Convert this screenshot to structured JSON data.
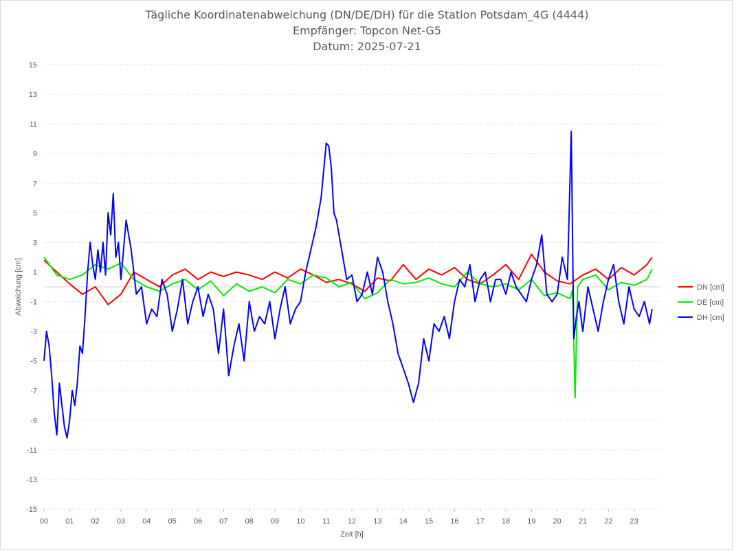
{
  "chart_data": {
    "type": "line",
    "title": [
      "Tägliche Koordinatenabweichung (DN/DE/DH) für die Station Potsdam_4G (4444)",
      "Empfänger: Topcon Net-G5",
      "Datum: 2025-07-21"
    ],
    "xlabel": "Zeit [h]",
    "ylabel": "Abweichung [cm]",
    "xlim": [
      0,
      24
    ],
    "ylim": [
      -15,
      15
    ],
    "x_ticks": [
      "00",
      "01",
      "02",
      "03",
      "04",
      "05",
      "06",
      "07",
      "08",
      "09",
      "10",
      "11",
      "12",
      "13",
      "14",
      "15",
      "16",
      "17",
      "18",
      "19",
      "20",
      "21",
      "22",
      "23"
    ],
    "y_ticks": [
      15,
      13,
      11,
      9,
      7,
      5,
      3,
      1,
      -1,
      -3,
      -5,
      -7,
      -9,
      -11,
      -13,
      -15
    ],
    "grid": "horizontal dotted",
    "legend_position": "right",
    "series": [
      {
        "name": "DN [cm]",
        "color": "#ff0000",
        "x": [
          0,
          0.5,
          1,
          1.5,
          2,
          2.5,
          3,
          3.5,
          4,
          4.5,
          5,
          5.5,
          6,
          6.5,
          7,
          7.5,
          8,
          8.5,
          9,
          9.5,
          10,
          10.5,
          11,
          11.5,
          12,
          12.5,
          13,
          13.5,
          14,
          14.5,
          15,
          15.5,
          16,
          16.5,
          17,
          17.5,
          18,
          18.5,
          19,
          19.5,
          20,
          20.5,
          21,
          21.5,
          22,
          22.5,
          23,
          23.5,
          23.7
        ],
        "y": [
          1.8,
          1.0,
          0.2,
          -0.5,
          0.0,
          -1.2,
          -0.5,
          1.0,
          0.5,
          0.0,
          0.8,
          1.2,
          0.5,
          1.0,
          0.7,
          1.0,
          0.8,
          0.5,
          1.0,
          0.6,
          1.2,
          0.8,
          0.3,
          0.5,
          0.2,
          -0.3,
          0.6,
          0.4,
          1.5,
          0.5,
          1.2,
          0.8,
          1.3,
          0.5,
          0.2,
          0.8,
          1.5,
          0.5,
          2.2,
          1.0,
          0.4,
          0.2,
          0.8,
          1.2,
          0.5,
          1.3,
          0.8,
          1.5,
          2.0
        ]
      },
      {
        "name": "DE [cm]",
        "color": "#00ee00",
        "x": [
          0,
          0.5,
          1,
          1.5,
          2,
          2.5,
          3,
          3.5,
          4,
          4.5,
          5,
          5.5,
          6,
          6.5,
          7,
          7.5,
          8,
          8.5,
          9,
          9.5,
          10,
          10.5,
          11,
          11.5,
          12,
          12.5,
          13,
          13.5,
          14,
          14.5,
          15,
          15.5,
          16,
          16.5,
          17,
          17.5,
          18,
          18.5,
          19,
          19.5,
          20,
          20.5,
          20.6,
          20.7,
          20.8,
          21,
          21.5,
          22,
          22.5,
          23,
          23.5,
          23.7
        ],
        "y": [
          2.0,
          0.8,
          0.5,
          0.8,
          1.5,
          1.2,
          1.6,
          0.5,
          0.0,
          -0.3,
          0.2,
          0.5,
          -0.2,
          0.4,
          -0.6,
          0.2,
          -0.3,
          0.0,
          -0.4,
          0.5,
          0.2,
          0.8,
          0.6,
          0.0,
          0.3,
          -0.8,
          -0.4,
          0.5,
          0.2,
          0.3,
          0.6,
          0.2,
          0.0,
          1.0,
          0.2,
          0.0,
          0.2,
          -0.2,
          0.5,
          -0.6,
          -0.4,
          -0.8,
          -0.2,
          -7.5,
          0.0,
          0.5,
          0.8,
          -0.2,
          0.3,
          0.1,
          0.5,
          1.2
        ]
      },
      {
        "name": "DH [cm]",
        "color": "#0000ff",
        "x": [
          0,
          0.1,
          0.2,
          0.3,
          0.4,
          0.5,
          0.6,
          0.7,
          0.8,
          0.9,
          1.0,
          1.1,
          1.2,
          1.3,
          1.4,
          1.5,
          1.6,
          1.7,
          1.8,
          1.9,
          2.0,
          2.1,
          2.2,
          2.3,
          2.4,
          2.5,
          2.6,
          2.7,
          2.8,
          2.9,
          3.0,
          3.2,
          3.4,
          3.6,
          3.8,
          4.0,
          4.2,
          4.4,
          4.6,
          4.8,
          5.0,
          5.2,
          5.4,
          5.6,
          5.8,
          6.0,
          6.2,
          6.4,
          6.6,
          6.8,
          7.0,
          7.2,
          7.4,
          7.6,
          7.8,
          8.0,
          8.2,
          8.4,
          8.6,
          8.8,
          9.0,
          9.2,
          9.4,
          9.6,
          9.8,
          10.0,
          10.2,
          10.4,
          10.6,
          10.8,
          11.0,
          11.1,
          11.2,
          11.3,
          11.4,
          11.6,
          11.8,
          12.0,
          12.2,
          12.4,
          12.6,
          12.8,
          13.0,
          13.2,
          13.4,
          13.6,
          13.8,
          14.0,
          14.2,
          14.4,
          14.6,
          14.8,
          15.0,
          15.2,
          15.4,
          15.6,
          15.8,
          16.0,
          16.2,
          16.4,
          16.6,
          16.8,
          17.0,
          17.2,
          17.4,
          17.6,
          17.8,
          18.0,
          18.2,
          18.4,
          18.6,
          18.8,
          19.0,
          19.2,
          19.4,
          19.6,
          19.8,
          20.0,
          20.2,
          20.4,
          20.55,
          20.65,
          20.75,
          20.85,
          21.0,
          21.2,
          21.4,
          21.6,
          21.8,
          22.0,
          22.2,
          22.4,
          22.6,
          22.8,
          23.0,
          23.2,
          23.4,
          23.6,
          23.7
        ],
        "y": [
          -5.0,
          -3.0,
          -4.0,
          -6.0,
          -8.5,
          -10.0,
          -6.5,
          -8.0,
          -9.5,
          -10.2,
          -9.0,
          -7.0,
          -8.0,
          -6.5,
          -4.0,
          -4.5,
          -2.0,
          1.0,
          3.0,
          1.5,
          0.5,
          2.5,
          1.0,
          3.0,
          0.8,
          5.0,
          3.5,
          6.3,
          2.0,
          3.0,
          0.5,
          4.5,
          2.5,
          -0.5,
          0.0,
          -2.5,
          -1.5,
          -2.0,
          0.5,
          -0.5,
          -3.0,
          -1.5,
          0.5,
          -2.5,
          -1.0,
          0.0,
          -2.0,
          -0.5,
          -1.5,
          -4.5,
          -1.5,
          -6.0,
          -4.0,
          -2.5,
          -5.0,
          -1.0,
          -3.0,
          -2.0,
          -2.5,
          -1.0,
          -3.5,
          -1.5,
          0.0,
          -2.5,
          -1.5,
          -1.0,
          1.0,
          2.5,
          4.0,
          6.0,
          9.7,
          9.5,
          8.0,
          5.0,
          4.5,
          2.5,
          0.5,
          0.8,
          -1.0,
          -0.5,
          1.0,
          -0.5,
          2.0,
          1.0,
          -1.0,
          -2.5,
          -4.5,
          -5.5,
          -6.5,
          -7.8,
          -6.5,
          -3.5,
          -5.0,
          -2.5,
          -3.0,
          -2.0,
          -3.5,
          -1.0,
          0.5,
          0.0,
          1.5,
          -1.0,
          0.5,
          1.0,
          -1.0,
          0.5,
          0.5,
          -0.5,
          1.0,
          0.0,
          -0.5,
          -1.0,
          0.5,
          1.5,
          3.5,
          -0.5,
          -1.0,
          -0.5,
          2.0,
          0.5,
          10.5,
          -3.5,
          -2.0,
          -1.0,
          -3.0,
          0.0,
          -1.5,
          -3.0,
          -1.0,
          0.5,
          1.5,
          -1.0,
          -2.5,
          0.0,
          -1.5,
          -2.0,
          -1.0,
          -2.5,
          -1.5
        ]
      }
    ]
  }
}
